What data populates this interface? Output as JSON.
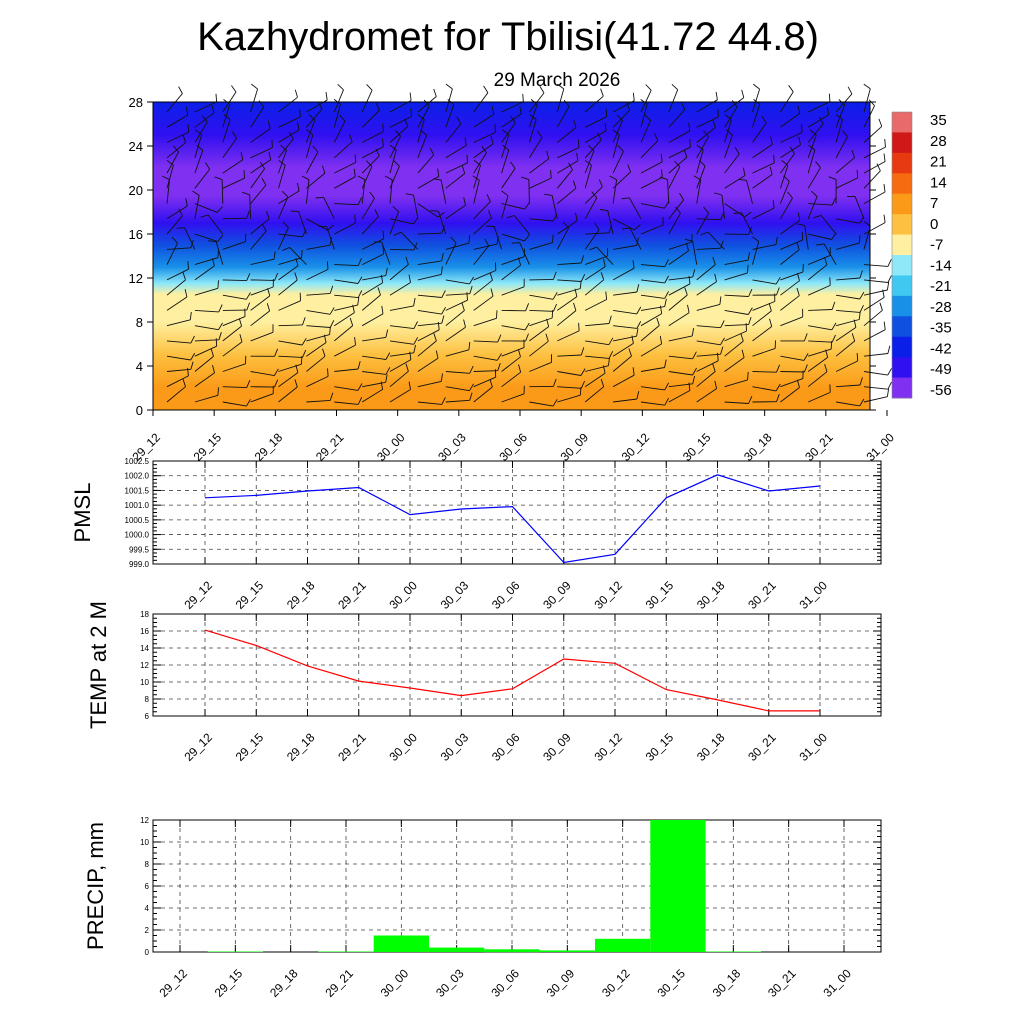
{
  "title": "Kazhydromet for Tbilisi(41.72 44.8)",
  "subtitle": "29 March 2026",
  "chart_data": [
    {
      "type": "heatmap",
      "name": "vertical cross-section temperature with wind barbs",
      "x_labels": [
        "29_12",
        "29_15",
        "29_18",
        "29_21",
        "30_00",
        "30_03",
        "30_06",
        "30_09",
        "30_12",
        "30_15",
        "30_18",
        "30_21",
        "31_00"
      ],
      "y_ticks": [
        0,
        4,
        8,
        12,
        16,
        20,
        24,
        28
      ],
      "ylim": [
        0,
        28
      ],
      "colorbar": {
        "labels": [
          "35",
          "28",
          "21",
          "14",
          "7",
          "0",
          "-7",
          "-14",
          "-21",
          "-28",
          "-35",
          "-42",
          "-49",
          "-56"
        ],
        "colors": [
          "#e86a6a",
          "#d01818",
          "#e83a10",
          "#f66a10",
          "#fb9a18",
          "#fdc040",
          "#fef0a0",
          "#8ee8f8",
          "#40c8f0",
          "#1890e8",
          "#1050e0",
          "#0a20e8",
          "#3010f0",
          "#8030f0"
        ]
      },
      "temperature_profile": [
        {
          "h": 0,
          "t": 10
        },
        {
          "h": 2,
          "t": 5
        },
        {
          "h": 5,
          "t": 0
        },
        {
          "h": 8,
          "t": -5
        },
        {
          "h": 10.5,
          "t": -10
        },
        {
          "h": 11.5,
          "t": -16
        },
        {
          "h": 13,
          "t": -26
        },
        {
          "h": 15,
          "t": -38
        },
        {
          "h": 17,
          "t": -50
        },
        {
          "h": 19.5,
          "t": -58
        },
        {
          "h": 22,
          "t": -56
        },
        {
          "h": 25,
          "t": -50
        },
        {
          "h": 28,
          "t": -44
        }
      ],
      "colors": {
        "line": "#111111"
      }
    },
    {
      "type": "line",
      "ylabel": "PMSL",
      "x_labels": [
        "29_12",
        "29_15",
        "29_18",
        "29_21",
        "30_00",
        "30_03",
        "30_06",
        "30_09",
        "30_12",
        "30_15",
        "30_18",
        "30_21",
        "31_00"
      ],
      "y_ticks": [
        "1002.5",
        "1002.0",
        "1001.5",
        "1001.0",
        "1000.5",
        "1000.0",
        "999.5",
        "999.0"
      ],
      "ylim": [
        999.0,
        1002.5
      ],
      "values": [
        1001.25,
        1001.33,
        1001.48,
        1001.6,
        1000.68,
        1000.87,
        1000.95,
        999.05,
        999.33,
        1001.25,
        1002.03,
        1001.48,
        1001.65
      ],
      "color": "#0000ff"
    },
    {
      "type": "line",
      "ylabel": "TEMP at 2 M",
      "x_labels": [
        "29_12",
        "29_15",
        "29_18",
        "29_21",
        "30_00",
        "30_03",
        "30_06",
        "30_09",
        "30_12",
        "30_15",
        "30_18",
        "30_21",
        "31_00"
      ],
      "y_ticks": [
        "18",
        "16",
        "14",
        "12",
        "10",
        "8",
        "6"
      ],
      "ylim": [
        6,
        18
      ],
      "values": [
        16.1,
        14.3,
        11.9,
        10.1,
        9.3,
        8.4,
        9.2,
        12.7,
        12.2,
        9.1,
        7.9,
        6.6,
        6.6
      ],
      "color": "#ff0000"
    },
    {
      "type": "bar",
      "ylabel": "PRECIP, mm",
      "x_labels": [
        "29_12",
        "29_15",
        "29_18",
        "29_21",
        "30_00",
        "30_03",
        "30_06",
        "30_09",
        "30_12",
        "30_15",
        "30_18",
        "30_21",
        "31_00"
      ],
      "y_ticks": [
        "12",
        "10",
        "8",
        "6",
        "4",
        "2",
        "0"
      ],
      "ylim": [
        0,
        12
      ],
      "values": [
        0,
        0.05,
        0,
        0.05,
        1.5,
        0.4,
        0.25,
        0.15,
        1.2,
        12,
        0.05,
        0,
        0
      ],
      "color": "#00ff00"
    }
  ]
}
